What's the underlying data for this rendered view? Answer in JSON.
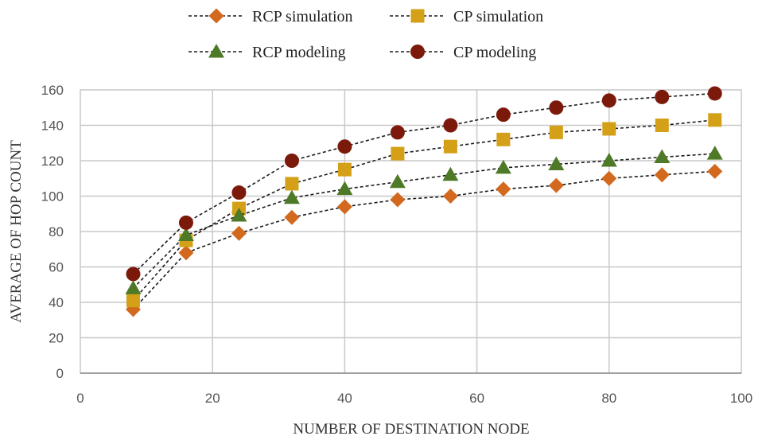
{
  "chart_data": {
    "type": "line",
    "xlabel": "NUMBER OF DESTINATION NODE",
    "ylabel": "AVERAGE OF HOP COUNT",
    "xlim": [
      0,
      100
    ],
    "ylim": [
      0,
      160
    ],
    "xticks": [
      0,
      20,
      40,
      60,
      80,
      100
    ],
    "yticks": [
      0,
      20,
      40,
      60,
      80,
      100,
      120,
      140,
      160
    ],
    "grid": true,
    "legend_position": "top",
    "x": [
      8,
      16,
      24,
      32,
      40,
      48,
      56,
      64,
      72,
      80,
      88,
      96
    ],
    "series": [
      {
        "name": "RCP simulation",
        "marker": "diamond",
        "color": "#D2691E",
        "values": [
          36,
          68,
          79,
          88,
          94,
          98,
          100,
          104,
          106,
          110,
          112,
          114
        ]
      },
      {
        "name": "CP simulation",
        "marker": "square",
        "color": "#D4A017",
        "values": [
          41,
          75,
          93,
          107,
          115,
          124,
          128,
          132,
          136,
          138,
          140,
          143
        ]
      },
      {
        "name": "RCP modeling",
        "marker": "triangle",
        "color": "#4E7A27",
        "values": [
          48,
          78,
          89,
          99,
          104,
          108,
          112,
          116,
          118,
          120,
          122,
          124
        ]
      },
      {
        "name": "CP modeling",
        "marker": "circle",
        "color": "#7B1A0A",
        "values": [
          56,
          85,
          102,
          120,
          128,
          136,
          140,
          146,
          150,
          154,
          156,
          158
        ]
      }
    ]
  }
}
